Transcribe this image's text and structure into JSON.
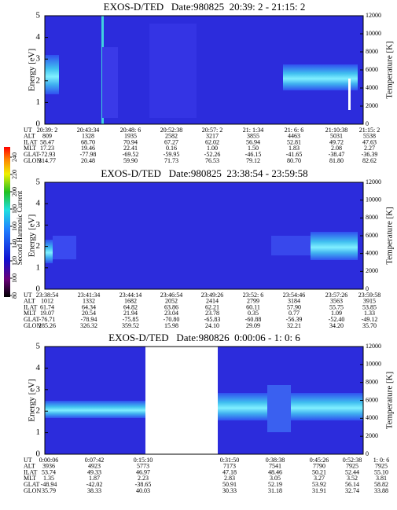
{
  "colorbar": {
    "label": "Second Harmonic Current",
    "lim": [
      80,
      240
    ],
    "ticks": [
      80,
      100,
      120,
      140,
      160,
      180,
      200,
      220,
      240
    ]
  },
  "chart_data": [
    {
      "type": "spectrogram",
      "title": "EXOS-D/TED   Date:980825  20:39: 2 - 21:15: 2",
      "ylabel": "Energy [eV]",
      "y2label": "Temperature [K]",
      "ylim": [
        0,
        5
      ],
      "yticks": [
        0,
        1,
        2,
        3,
        4,
        5
      ],
      "y2lim": [
        0,
        12000
      ],
      "y2ticks": [
        0,
        2000,
        4000,
        6000,
        8000,
        10000,
        12000
      ],
      "ephemeris": {
        "labels": [
          "UT",
          "ALT",
          "ILAT",
          "MLT",
          "GLAT",
          "GLON"
        ],
        "rows": [
          [
            "20:39: 2",
            "20:43:34",
            "20:48: 6",
            "20:52:38",
            "20:57: 2",
            "21: 1:34",
            "21: 6: 6",
            "21:10:38",
            "21:15: 2"
          ],
          [
            "809",
            "1328",
            "1935",
            "2582",
            "3217",
            "3855",
            "4463",
            "5031",
            "5538"
          ],
          [
            "58.47",
            "68.70",
            "70.94",
            "67.27",
            "62.02",
            "56.94",
            "52.81",
            "49.72",
            "47.63"
          ],
          [
            "17.23",
            "19.46",
            "22.41",
            "0.16",
            "1.00",
            "1.50",
            "1.83",
            "2.08",
            "2.27"
          ],
          [
            "-72.93",
            "-77.98",
            "-69.52",
            "-59.95",
            "-52.26",
            "-46.15",
            "-41.65",
            "-38.47",
            "-36.39"
          ],
          [
            "314.77",
            "20.48",
            "59.90",
            "71.73",
            "76.53",
            "79.12",
            "80.70",
            "81.80",
            "82.62"
          ]
        ]
      }
    },
    {
      "type": "spectrogram",
      "title": "EXOS-D/TED   Date:980825  23:38:54 - 23:59:58",
      "ylabel": "Energy [eV]",
      "y2label": "Temperature [K]",
      "ylim": [
        0,
        5
      ],
      "yticks": [
        0,
        1,
        2,
        3,
        4,
        5
      ],
      "y2lim": [
        0,
        12000
      ],
      "y2ticks": [
        0,
        2000,
        4000,
        6000,
        8000,
        10000,
        12000
      ],
      "ephemeris": {
        "labels": [
          "UT",
          "ALT",
          "ILAT",
          "MLT",
          "GLAT",
          "GLON"
        ],
        "rows": [
          [
            "23:38:54",
            "23:41:34",
            "23:44:14",
            "23:46:54",
            "23:49:26",
            "23:52: 6",
            "23:54:46",
            "23:57:26",
            "23:59:58"
          ],
          [
            "1012",
            "1332",
            "1682",
            "2052",
            "2414",
            "2799",
            "3184",
            "3563",
            "3915"
          ],
          [
            "61.74",
            "64.34",
            "64.82",
            "63.86",
            "62.21",
            "60.11",
            "57.90",
            "55.75",
            "53.85"
          ],
          [
            "19.07",
            "20.54",
            "21.94",
            "23.04",
            "23.78",
            "0.35",
            "0.77",
            "1.09",
            "1.33"
          ],
          [
            "-76.71",
            "-78.94",
            "-75.85",
            "-70.80",
            "-65.83",
            "-60.88",
            "-56.39",
            "-52.40",
            "-49.12"
          ],
          [
            "285.26",
            "326.32",
            "359.52",
            "15.98",
            "24.10",
            "29.09",
            "32.21",
            "34.20",
            "35.70"
          ]
        ]
      }
    },
    {
      "type": "spectrogram",
      "title": "EXOS-D/TED   Date:980826  0:00:06 - 1: 0: 6",
      "ylabel": "Energy [eV]",
      "y2label": "Temperature [K]",
      "ylim": [
        0,
        5
      ],
      "yticks": [
        0,
        1,
        2,
        3,
        4,
        5
      ],
      "y2lim": [
        0,
        12000
      ],
      "y2ticks": [
        0,
        2000,
        4000,
        6000,
        8000,
        10000,
        12000
      ],
      "ephemeris": {
        "labels": [
          "UT",
          "ALT",
          "ILAT",
          "MLT",
          "GLAT",
          "GLON"
        ],
        "rows": [
          [
            "0:00:06",
            "0:07:42",
            "0:15:10",
            "0:31:50",
            "0:38:38",
            "0:45:26",
            "0:52:38",
            "1: 0: 6"
          ],
          [
            "3936",
            "4923",
            "5773",
            "7173",
            "7541",
            "7790",
            "7925",
            "7925"
          ],
          [
            "53.74",
            "49.33",
            "46.97",
            "47.18",
            "48.46",
            "50.21",
            "52.44",
            "55.10"
          ],
          [
            "1.35",
            "1.87",
            "2.23",
            "2.83",
            "3.05",
            "3.27",
            "3.52",
            "3.81"
          ],
          [
            "-48.94",
            "-42.02",
            "-38.65",
            "50.91",
            "52.19",
            "53.92",
            "56.14",
            "58.82"
          ],
          [
            "35.79",
            "38.33",
            "40.03",
            "30.33",
            "31.18",
            "31.91",
            "32.74",
            "33.88"
          ]
        ]
      }
    }
  ]
}
